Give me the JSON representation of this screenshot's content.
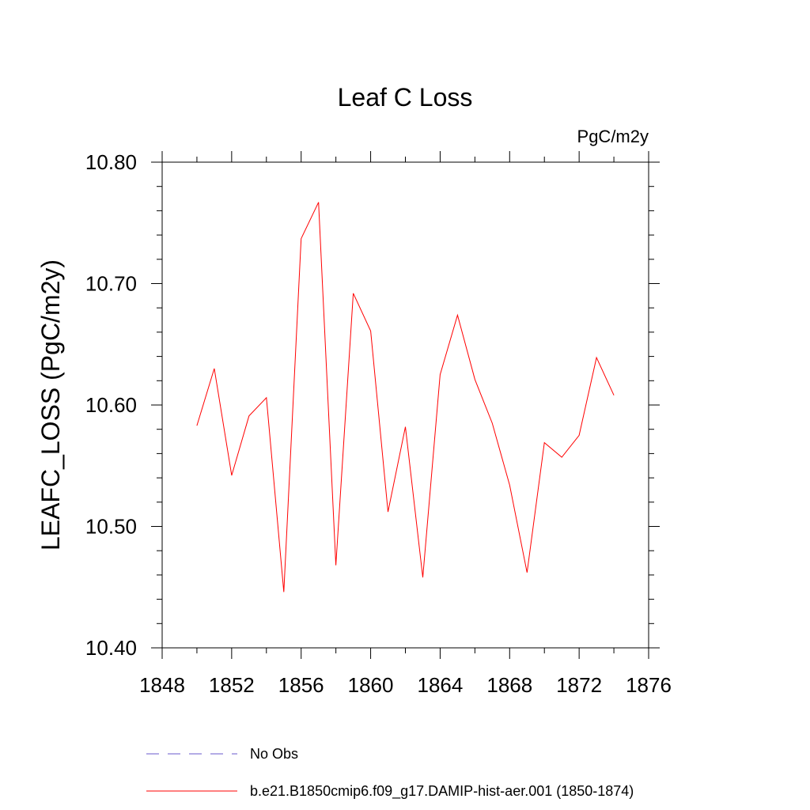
{
  "chart_data": {
    "type": "line",
    "title": "Leaf C Loss",
    "units_label": "PgC/m2y",
    "ylabel": "LEAFC_LOSS  (PgC/m2y)",
    "xlabel": "",
    "xlim": [
      1848,
      1876
    ],
    "ylim": [
      10.4,
      10.8
    ],
    "x_ticks": [
      1848,
      1852,
      1856,
      1860,
      1864,
      1868,
      1872,
      1876
    ],
    "x_tick_labels": [
      "1848",
      "1852",
      "1856",
      "1860",
      "1864",
      "1868",
      "1872",
      "1876"
    ],
    "y_ticks": [
      10.4,
      10.5,
      10.6,
      10.7,
      10.8
    ],
    "y_tick_labels": [
      "10.40",
      "10.50",
      "10.60",
      "10.70",
      "10.80"
    ],
    "grid": false,
    "legend_position": "bottom",
    "series": [
      {
        "name": "b.e21.B1850cmip6.f09_g17.DAMIP-hist-aer.001 (1850-1874)",
        "color": "#ff0000",
        "x": [
          1850,
          1851,
          1852,
          1853,
          1854,
          1855,
          1856,
          1857,
          1858,
          1859,
          1860,
          1861,
          1862,
          1863,
          1864,
          1865,
          1866,
          1867,
          1868,
          1869,
          1870,
          1871,
          1872,
          1873,
          1874
        ],
        "y": [
          10.583,
          10.63,
          10.542,
          10.591,
          10.606,
          10.446,
          10.737,
          10.767,
          10.468,
          10.692,
          10.661,
          10.512,
          10.582,
          10.458,
          10.625,
          10.674,
          10.621,
          10.585,
          10.534,
          10.462,
          10.569,
          10.557,
          10.575,
          10.639,
          10.608
        ]
      }
    ],
    "legend": [
      {
        "label": "No Obs",
        "color": "#6a5acd",
        "dashed": true
      },
      {
        "label": "b.e21.B1850cmip6.f09_g17.DAMIP-hist-aer.001 (1850-1874)",
        "color": "#ff0000",
        "dashed": false
      }
    ]
  }
}
